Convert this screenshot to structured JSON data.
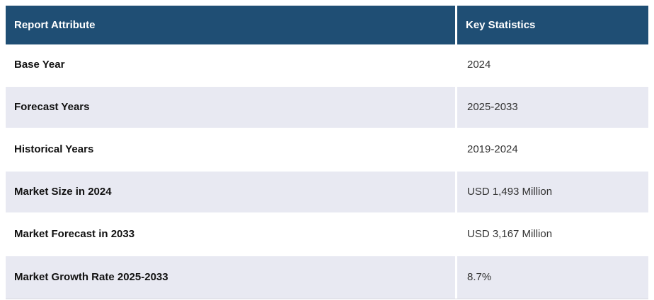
{
  "table": {
    "columns": [
      {
        "label": "Report Attribute"
      },
      {
        "label": "Key Statistics"
      }
    ],
    "rows": [
      {
        "attribute": "Base Year",
        "value": "2024"
      },
      {
        "attribute": "Forecast Years",
        "value": "2025-2033"
      },
      {
        "attribute": "Historical Years",
        "value": "2019-2024"
      },
      {
        "attribute": "Market Size in 2024",
        "value": "USD 1,493 Million"
      },
      {
        "attribute": "Market Forecast in 2033",
        "value": "USD 3,167 Million"
      },
      {
        "attribute": "Market Growth Rate 2025-2033",
        "value": "8.7%"
      }
    ],
    "colors": {
      "header_bg": "#1f4e74",
      "header_text": "#ffffff",
      "row_bg": "#ffffff",
      "row_alt_bg": "#e8e9f2",
      "attr_text": "#111111",
      "value_text": "#333333"
    }
  }
}
